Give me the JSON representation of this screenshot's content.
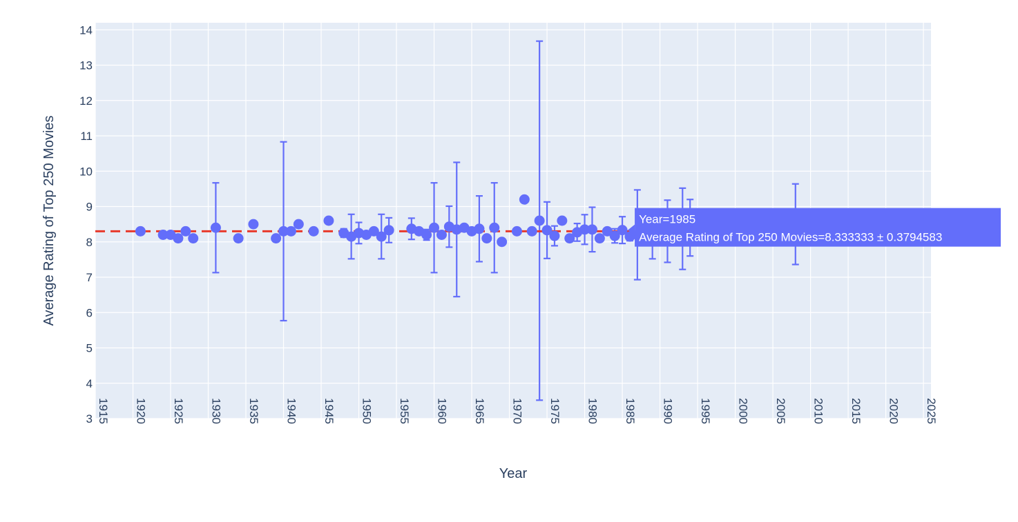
{
  "colors": {
    "plot_bg": "#e5ecf6",
    "grid": "#ffffff",
    "marker": "#636efa",
    "reference_line": "#e8392b",
    "text": "#2a3f5f",
    "hover_bg": "#636efa",
    "hover_text": "#ffffff"
  },
  "chart_data": {
    "type": "scatter",
    "title": "",
    "xlabel": "Year",
    "ylabel": "Average Rating of Top 250 Movies",
    "xlim": [
      1915,
      2026
    ],
    "ylim": [
      3,
      14.2
    ],
    "xticks": [
      "1915",
      "1920",
      "1925",
      "1930",
      "1935",
      "1940",
      "1945",
      "1950",
      "1955",
      "1960",
      "1965",
      "1970",
      "1975",
      "1980",
      "1985",
      "1990",
      "1995",
      "2000",
      "2005",
      "2010",
      "2015",
      "2020",
      "2025"
    ],
    "yticks": [
      "3",
      "4",
      "5",
      "6",
      "7",
      "8",
      "9",
      "10",
      "11",
      "12",
      "13",
      "14"
    ],
    "grid": true,
    "reference_line": {
      "y": 8.3,
      "style": "dashed"
    },
    "series": [
      {
        "points": [
          {
            "x": 1921,
            "y": 8.3
          },
          {
            "x": 1924,
            "y": 8.2
          },
          {
            "x": 1925,
            "y": 8.2
          },
          {
            "x": 1926,
            "y": 8.1
          },
          {
            "x": 1927,
            "y": 8.3
          },
          {
            "x": 1928,
            "y": 8.1
          },
          {
            "x": 1931,
            "y": 8.4,
            "err": 1.27
          },
          {
            "x": 1934,
            "y": 8.1
          },
          {
            "x": 1936,
            "y": 8.5
          },
          {
            "x": 1939,
            "y": 8.1
          },
          {
            "x": 1940,
            "y": 8.3,
            "err": 2.53
          },
          {
            "x": 1941,
            "y": 8.3
          },
          {
            "x": 1942,
            "y": 8.5
          },
          {
            "x": 1944,
            "y": 8.3
          },
          {
            "x": 1946,
            "y": 8.6
          },
          {
            "x": 1948,
            "y": 8.25,
            "err": 0.12
          },
          {
            "x": 1949,
            "y": 8.15,
            "err": 0.63
          },
          {
            "x": 1950,
            "y": 8.25,
            "err": 0.3
          },
          {
            "x": 1951,
            "y": 8.2
          },
          {
            "x": 1952,
            "y": 8.3
          },
          {
            "x": 1953,
            "y": 8.15,
            "err": 0.63
          },
          {
            "x": 1954,
            "y": 8.33,
            "err": 0.35
          },
          {
            "x": 1957,
            "y": 8.37,
            "err": 0.3
          },
          {
            "x": 1958,
            "y": 8.3
          },
          {
            "x": 1959,
            "y": 8.2,
            "err": 0.15
          },
          {
            "x": 1960,
            "y": 8.4,
            "err": 1.27
          },
          {
            "x": 1961,
            "y": 8.2
          },
          {
            "x": 1962,
            "y": 8.43,
            "err": 0.58
          },
          {
            "x": 1963,
            "y": 8.35,
            "err": 1.9
          },
          {
            "x": 1964,
            "y": 8.4
          },
          {
            "x": 1965,
            "y": 8.3
          },
          {
            "x": 1966,
            "y": 8.37,
            "err": 0.93
          },
          {
            "x": 1967,
            "y": 8.1
          },
          {
            "x": 1968,
            "y": 8.4,
            "err": 1.27
          },
          {
            "x": 1969,
            "y": 8.0
          },
          {
            "x": 1971,
            "y": 8.3
          },
          {
            "x": 1972,
            "y": 9.2
          },
          {
            "x": 1973,
            "y": 8.3
          },
          {
            "x": 1974,
            "y": 8.6,
            "err": 5.08
          },
          {
            "x": 1975,
            "y": 8.33,
            "err": 0.8
          },
          {
            "x": 1976,
            "y": 8.17,
            "err": 0.28
          },
          {
            "x": 1977,
            "y": 8.6
          },
          {
            "x": 1978,
            "y": 8.1
          },
          {
            "x": 1979,
            "y": 8.27,
            "err": 0.25
          },
          {
            "x": 1980,
            "y": 8.35,
            "err": 0.42
          },
          {
            "x": 1981,
            "y": 8.35,
            "err": 0.63
          },
          {
            "x": 1982,
            "y": 8.1
          },
          {
            "x": 1983,
            "y": 8.3
          },
          {
            "x": 1984,
            "y": 8.17,
            "err": 0.2
          },
          {
            "x": 1985,
            "y": 8.333333,
            "err": 0.3794583
          },
          {
            "x": 1986,
            "y": 8.15,
            "err": 0.12
          },
          {
            "x": 1987,
            "y": 8.2,
            "err": 1.27
          },
          {
            "x": 1988,
            "y": 8.3
          },
          {
            "x": 1989,
            "y": 8.1,
            "err": 0.58
          },
          {
            "x": 1990,
            "y": 8.2
          },
          {
            "x": 1991,
            "y": 8.3,
            "err": 0.88
          },
          {
            "x": 1992,
            "y": 8.1
          },
          {
            "x": 1993,
            "y": 8.37,
            "err": 1.15
          },
          {
            "x": 1994,
            "y": 8.4,
            "err": 0.8
          },
          {
            "x": 2002,
            "y": 8.6,
            "err": 0.3
          },
          {
            "x": 2008,
            "y": 8.5,
            "err": 1.14
          }
        ]
      }
    ]
  },
  "hover": {
    "line1": "Year=1985",
    "line2": "Average Rating of Top 250 Movies=8.333333 ± 0.3794583"
  }
}
